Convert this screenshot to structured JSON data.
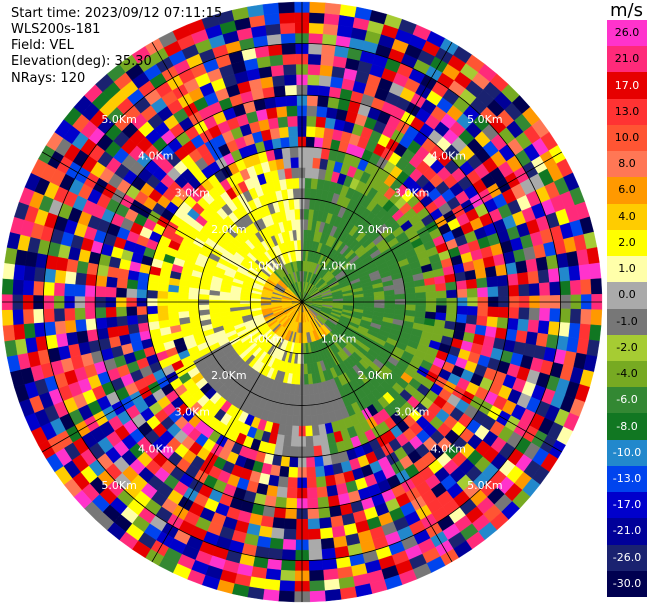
{
  "header": {
    "start_time": "Start time: 2023/09/12 07:11:15",
    "instrument": "WLS200s-181",
    "field": "Field: VEL",
    "elevation": "Elevation(deg): 35.30",
    "nrays": "NRays: 120"
  },
  "colorbar": {
    "unit": "m/s",
    "labels": [
      "26.0",
      "21.0",
      "17.0",
      "13.0",
      "10.0",
      "8.0",
      "6.0",
      "4.0",
      "2.0",
      "1.0",
      "0.0",
      "-1.0",
      "-2.0",
      "-4.0",
      "-6.0",
      "-8.0",
      "-10.0",
      "-13.0",
      "-17.0",
      "-21.0",
      "-26.0",
      "-30.0"
    ],
    "colors": [
      "#ff33cc",
      "#ff2a7a",
      "#e60000",
      "#ff3333",
      "#ff5533",
      "#ff7755",
      "#ff9900",
      "#ffcc00",
      "#ffff00",
      "#ffffaa",
      "#aaaaaa",
      "#777777",
      "#a6cc33",
      "#77aa22",
      "#338833",
      "#117722",
      "#2288cc",
      "#0044ee",
      "#0000cc",
      "#000099",
      "#1a2270",
      "#000050"
    ]
  },
  "chart_data": {
    "type": "heatmap",
    "projection": "polar PPI",
    "field": "VEL",
    "units": "m/s",
    "nrays": 120,
    "range_unit": "km",
    "range_rings_km": [
      1.0,
      2.0,
      3.0,
      4.0,
      5.0
    ],
    "range_ring_labels": [
      "1.0Km",
      "2.0Km",
      "3.0Km",
      "4.0Km",
      "5.0Km"
    ],
    "range_bins_km": [
      0.1,
      0.3,
      0.5,
      0.7,
      0.9,
      1.1,
      1.3,
      1.5,
      1.7,
      1.9,
      2.1,
      2.3,
      2.5,
      2.7,
      2.9,
      3.1,
      3.3,
      3.5,
      3.7,
      3.9,
      4.1,
      4.3,
      4.5,
      4.7,
      4.9,
      5.1,
      5.3,
      5.5,
      5.7
    ],
    "max_range_km": 5.8,
    "color_levels": [
      -30,
      -26,
      -21,
      -17,
      -13,
      -10,
      -8,
      -6,
      -4,
      -2,
      -1,
      0,
      1,
      2,
      4,
      6,
      8,
      10,
      13,
      17,
      21,
      26
    ],
    "velocity_structure": [
      {
        "region": "near-range west/south-west",
        "range_km": [
          0.0,
          0.9
        ],
        "velocity_ms": 5.0
      },
      {
        "region": "near-range north-east",
        "range_km": [
          0.0,
          0.9
        ],
        "velocity_ms": -5.0
      },
      {
        "region": "west half mid-range",
        "range_km": [
          0.9,
          2.4
        ],
        "velocity_ms": 2.5
      },
      {
        "region": "east half mid-range",
        "range_km": [
          0.9,
          2.4
        ],
        "velocity_ms": -3.0
      },
      {
        "region": "ring transition",
        "range_km": [
          2.4,
          3.0
        ],
        "velocity_ms": 0.0
      },
      {
        "region": "outer range noise",
        "range_km": [
          3.0,
          5.8
        ],
        "velocity_ms": null
      }
    ]
  }
}
